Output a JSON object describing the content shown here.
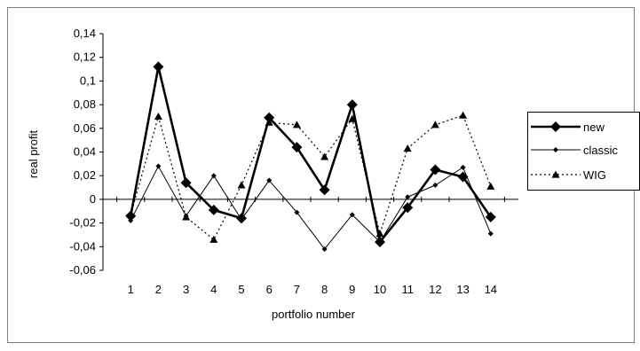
{
  "chart_data": {
    "type": "line",
    "xlabel": "portfolio number",
    "ylabel": "real profit",
    "categories": [
      "1",
      "2",
      "3",
      "4",
      "5",
      "6",
      "7",
      "8",
      "9",
      "10",
      "11",
      "12",
      "13",
      "14"
    ],
    "y_ticks": [
      "0,14",
      "0,12",
      "0,1",
      "0,08",
      "0,06",
      "0,04",
      "0,02",
      "0",
      "-0,02",
      "-0,04",
      "-0,06"
    ],
    "ylim": [
      -0.06,
      0.14
    ],
    "grid": false,
    "legend_position": "right",
    "series": [
      {
        "name": "new",
        "values": [
          -0.014,
          0.112,
          0.014,
          -0.009,
          -0.016,
          0.069,
          0.044,
          0.008,
          0.08,
          -0.036,
          -0.007,
          0.025,
          0.019,
          -0.015
        ],
        "line_style": "solid-thick",
        "marker": "diamond-large",
        "color": "#000000"
      },
      {
        "name": "classic",
        "values": [
          -0.018,
          0.028,
          -0.014,
          0.02,
          -0.017,
          0.016,
          -0.011,
          -0.042,
          -0.013,
          -0.036,
          0.002,
          0.012,
          0.027,
          -0.029
        ],
        "line_style": "solid-thin",
        "marker": "diamond-small",
        "color": "#000000"
      },
      {
        "name": "WIG",
        "values": [
          -0.013,
          0.07,
          -0.015,
          -0.034,
          0.012,
          0.065,
          0.063,
          0.036,
          0.068,
          -0.029,
          0.043,
          0.063,
          0.071,
          0.011
        ],
        "line_style": "dotted",
        "marker": "triangle",
        "color": "#000000"
      }
    ]
  }
}
